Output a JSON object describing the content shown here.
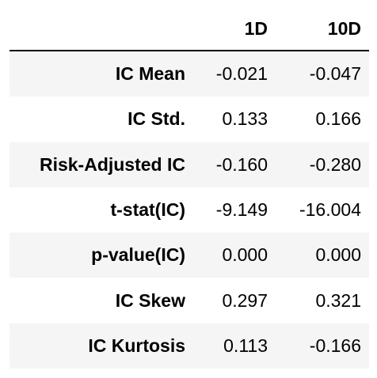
{
  "table": {
    "columns": [
      "1D",
      "10D"
    ],
    "rows": [
      {
        "label": "IC Mean",
        "values": [
          "-0.021",
          "-0.047"
        ]
      },
      {
        "label": "IC Std.",
        "values": [
          "0.133",
          "0.166"
        ]
      },
      {
        "label": "Risk-Adjusted IC",
        "values": [
          "-0.160",
          "-0.280"
        ]
      },
      {
        "label": "t-stat(IC)",
        "values": [
          "-9.149",
          "-16.004"
        ]
      },
      {
        "label": "p-value(IC)",
        "values": [
          "0.000",
          "0.000"
        ]
      },
      {
        "label": "IC Skew",
        "values": [
          "0.297",
          "0.321"
        ]
      },
      {
        "label": "IC Kurtosis",
        "values": [
          "0.113",
          "-0.166"
        ]
      }
    ]
  },
  "colors": {
    "stripe": "#f5f5f5",
    "text": "#000000",
    "rule": "#000000"
  }
}
